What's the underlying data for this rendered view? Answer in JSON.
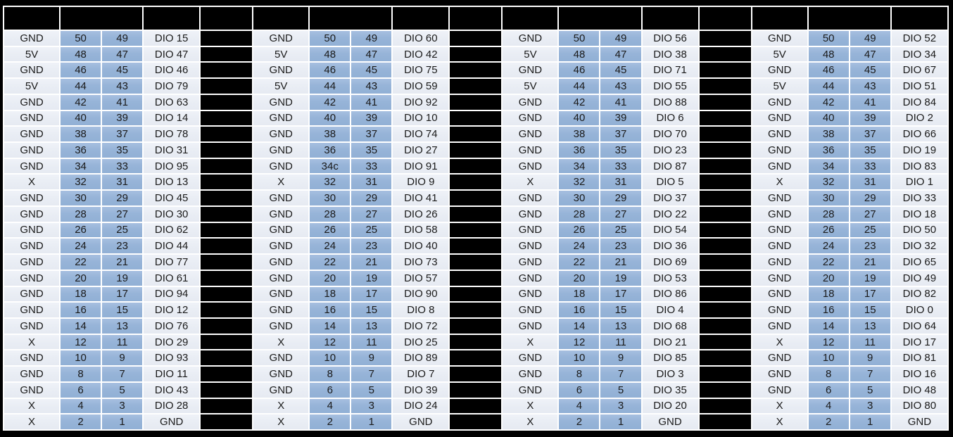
{
  "colors": {
    "frame_and_separators": "#000000",
    "pin_cell_blue": "#95B3D7",
    "label_cell_light": "#E9EDF4",
    "grid_lines": "#FFFFFF",
    "text": "#1A1A1A"
  },
  "pinout_table": {
    "row_cell_order": [
      "power",
      "pin_even",
      "pin_odd",
      "signal"
    ],
    "connectors": [
      {
        "id": "connector-1",
        "rows": [
          [
            "GND",
            "50",
            "49",
            "DIO 15"
          ],
          [
            "5V",
            "48",
            "47",
            "DIO 47"
          ],
          [
            "GND",
            "46",
            "45",
            "DIO 46"
          ],
          [
            "5V",
            "44",
            "43",
            "DIO 79"
          ],
          [
            "GND",
            "42",
            "41",
            "DIO 63"
          ],
          [
            "GND",
            "40",
            "39",
            "DIO 14"
          ],
          [
            "GND",
            "38",
            "37",
            "DIO 78"
          ],
          [
            "GND",
            "36",
            "35",
            "DIO 31"
          ],
          [
            "GND",
            "34",
            "33",
            "DIO 95"
          ],
          [
            "X",
            "32",
            "31",
            "DIO 13"
          ],
          [
            "GND",
            "30",
            "29",
            "DIO 45"
          ],
          [
            "GND",
            "28",
            "27",
            "DIO 30"
          ],
          [
            "GND",
            "26",
            "25",
            "DIO 62"
          ],
          [
            "GND",
            "24",
            "23",
            "DIO 44"
          ],
          [
            "GND",
            "22",
            "21",
            "DIO 77"
          ],
          [
            "GND",
            "20",
            "19",
            "DIO 61"
          ],
          [
            "GND",
            "18",
            "17",
            "DIO 94"
          ],
          [
            "GND",
            "16",
            "15",
            "DIO 12"
          ],
          [
            "GND",
            "14",
            "13",
            "DIO 76"
          ],
          [
            "X",
            "12",
            "11",
            "DIO 29"
          ],
          [
            "GND",
            "10",
            "9",
            "DIO 93"
          ],
          [
            "GND",
            "8",
            "7",
            "DIO 11"
          ],
          [
            "GND",
            "6",
            "5",
            "DIO 43"
          ],
          [
            "X",
            "4",
            "3",
            "DIO 28"
          ],
          [
            "X",
            "2",
            "1",
            "GND"
          ]
        ]
      },
      {
        "id": "connector-2",
        "rows": [
          [
            "GND",
            "50",
            "49",
            "DIO 60"
          ],
          [
            "5V",
            "48",
            "47",
            "DIO 42"
          ],
          [
            "GND",
            "46",
            "45",
            "DIO 75"
          ],
          [
            "5V",
            "44",
            "43",
            "DIO 59"
          ],
          [
            "GND",
            "42",
            "41",
            "DIO 92"
          ],
          [
            "GND",
            "40",
            "39",
            "DIO 10"
          ],
          [
            "GND",
            "38",
            "37",
            "DIO 74"
          ],
          [
            "GND",
            "36",
            "35",
            "DIO 27"
          ],
          [
            "GND",
            "34c",
            "33",
            "DIO 91"
          ],
          [
            "X",
            "32",
            "31",
            "DIO 9"
          ],
          [
            "GND",
            "30",
            "29",
            "DIO 41"
          ],
          [
            "GND",
            "28",
            "27",
            "DIO 26"
          ],
          [
            "GND",
            "26",
            "25",
            "DIO 58"
          ],
          [
            "GND",
            "24",
            "23",
            "DIO 40"
          ],
          [
            "GND",
            "22",
            "21",
            "DIO 73"
          ],
          [
            "GND",
            "20",
            "19",
            "DIO 57"
          ],
          [
            "GND",
            "18",
            "17",
            "DIO 90"
          ],
          [
            "GND",
            "16",
            "15",
            "DIO 8"
          ],
          [
            "GND",
            "14",
            "13",
            "DIO 72"
          ],
          [
            "X",
            "12",
            "11",
            "DIO 25"
          ],
          [
            "GND",
            "10",
            "9",
            "DIO 89"
          ],
          [
            "GND",
            "8",
            "7",
            "DIO 7"
          ],
          [
            "GND",
            "6",
            "5",
            "DIO 39"
          ],
          [
            "X",
            "4",
            "3",
            "DIO 24"
          ],
          [
            "X",
            "2",
            "1",
            "GND"
          ]
        ]
      },
      {
        "id": "connector-3",
        "rows": [
          [
            "GND",
            "50",
            "49",
            "DIO 56"
          ],
          [
            "5V",
            "48",
            "47",
            "DIO 38"
          ],
          [
            "GND",
            "46",
            "45",
            "DIO 71"
          ],
          [
            "5V",
            "44",
            "43",
            "DIO 55"
          ],
          [
            "GND",
            "42",
            "41",
            "DIO 88"
          ],
          [
            "GND",
            "40",
            "39",
            "DIO 6"
          ],
          [
            "GND",
            "38",
            "37",
            "DIO 70"
          ],
          [
            "GND",
            "36",
            "35",
            "DIO 23"
          ],
          [
            "GND",
            "34",
            "33",
            "DIO 87"
          ],
          [
            "X",
            "32",
            "31",
            "DIO 5"
          ],
          [
            "GND",
            "30",
            "29",
            "DIO 37"
          ],
          [
            "GND",
            "28",
            "27",
            "DIO 22"
          ],
          [
            "GND",
            "26",
            "25",
            "DIO 54"
          ],
          [
            "GND",
            "24",
            "23",
            "DIO 36"
          ],
          [
            "GND",
            "22",
            "21",
            "DIO 69"
          ],
          [
            "GND",
            "20",
            "19",
            "DIO 53"
          ],
          [
            "GND",
            "18",
            "17",
            "DIO 86"
          ],
          [
            "GND",
            "16",
            "15",
            "DIO 4"
          ],
          [
            "GND",
            "14",
            "13",
            "DIO 68"
          ],
          [
            "X",
            "12",
            "11",
            "DIO 21"
          ],
          [
            "GND",
            "10",
            "9",
            "DIO 85"
          ],
          [
            "GND",
            "8",
            "7",
            "DIO 3"
          ],
          [
            "GND",
            "6",
            "5",
            "DIO 35"
          ],
          [
            "X",
            "4",
            "3",
            "DIO 20"
          ],
          [
            "X",
            "2",
            "1",
            "GND"
          ]
        ]
      },
      {
        "id": "connector-4",
        "rows": [
          [
            "GND",
            "50",
            "49",
            "DIO 52"
          ],
          [
            "5V",
            "48",
            "47",
            "DIO 34"
          ],
          [
            "GND",
            "46",
            "45",
            "DIO 67"
          ],
          [
            "5V",
            "44",
            "43",
            "DIO 51"
          ],
          [
            "GND",
            "42",
            "41",
            "DIO 84"
          ],
          [
            "GND",
            "40",
            "39",
            "DIO 2"
          ],
          [
            "GND",
            "38",
            "37",
            "DIO 66"
          ],
          [
            "GND",
            "36",
            "35",
            "DIO 19"
          ],
          [
            "GND",
            "34",
            "33",
            "DIO 83"
          ],
          [
            "X",
            "32",
            "31",
            "DIO 1"
          ],
          [
            "GND",
            "30",
            "29",
            "DIO 33"
          ],
          [
            "GND",
            "28",
            "27",
            "DIO 18"
          ],
          [
            "GND",
            "26",
            "25",
            "DIO 50"
          ],
          [
            "GND",
            "24",
            "23",
            "DIO 32"
          ],
          [
            "GND",
            "22",
            "21",
            "DIO 65"
          ],
          [
            "GND",
            "20",
            "19",
            "DIO 49"
          ],
          [
            "GND",
            "18",
            "17",
            "DIO 82"
          ],
          [
            "GND",
            "16",
            "15",
            "DIO 0"
          ],
          [
            "GND",
            "14",
            "13",
            "DIO 64"
          ],
          [
            "X",
            "12",
            "11",
            "DIO 17"
          ],
          [
            "GND",
            "10",
            "9",
            "DIO 81"
          ],
          [
            "GND",
            "8",
            "7",
            "DIO 16"
          ],
          [
            "GND",
            "6",
            "5",
            "DIO 48"
          ],
          [
            "X",
            "4",
            "3",
            "DIO 80"
          ],
          [
            "X",
            "2",
            "1",
            "GND"
          ]
        ]
      }
    ]
  }
}
